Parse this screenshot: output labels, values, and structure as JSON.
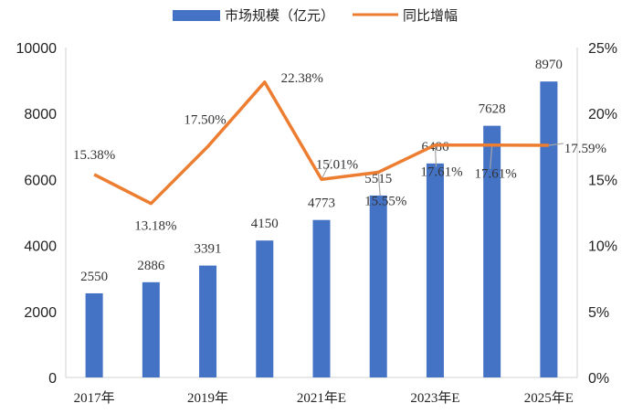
{
  "chart_data": {
    "type": "bar",
    "categories": [
      "2017年",
      "",
      "2019年",
      "",
      "2021年E",
      "",
      "2023年E",
      "",
      "2025年E"
    ],
    "series": [
      {
        "name": "市场规模（亿元）",
        "type": "bar",
        "axis": "left",
        "values": [
          2550,
          2886,
          3391,
          4150,
          4773,
          5515,
          6486,
          7628,
          8970
        ],
        "labels": [
          "2550",
          "2886",
          "3391",
          "4150",
          "4773",
          "5515",
          "6486",
          "7628",
          "8970"
        ],
        "color": "#4472C4"
      },
      {
        "name": "同比增幅",
        "type": "line",
        "axis": "right",
        "values": [
          15.38,
          13.18,
          17.5,
          22.38,
          15.01,
          15.55,
          17.61,
          17.61,
          17.59
        ],
        "labels": [
          "15.38%",
          "13.18%",
          "17.50%",
          "22.38%",
          "15.01%",
          "15.55%",
          "17.61%",
          "17.61%",
          "17.59%"
        ],
        "color": "#ED7D31"
      }
    ],
    "y_left": {
      "min": 0,
      "max": 10000,
      "ticks": [
        "0",
        "2000",
        "4000",
        "6000",
        "8000",
        "10000"
      ]
    },
    "y_right": {
      "min": 0,
      "max": 25,
      "ticks": [
        "0%",
        "5%",
        "10%",
        "15%",
        "20%",
        "25%"
      ]
    },
    "legend": {
      "position": "top-center"
    },
    "grid": false,
    "title": "",
    "xlabel": "",
    "ylabel": ""
  }
}
